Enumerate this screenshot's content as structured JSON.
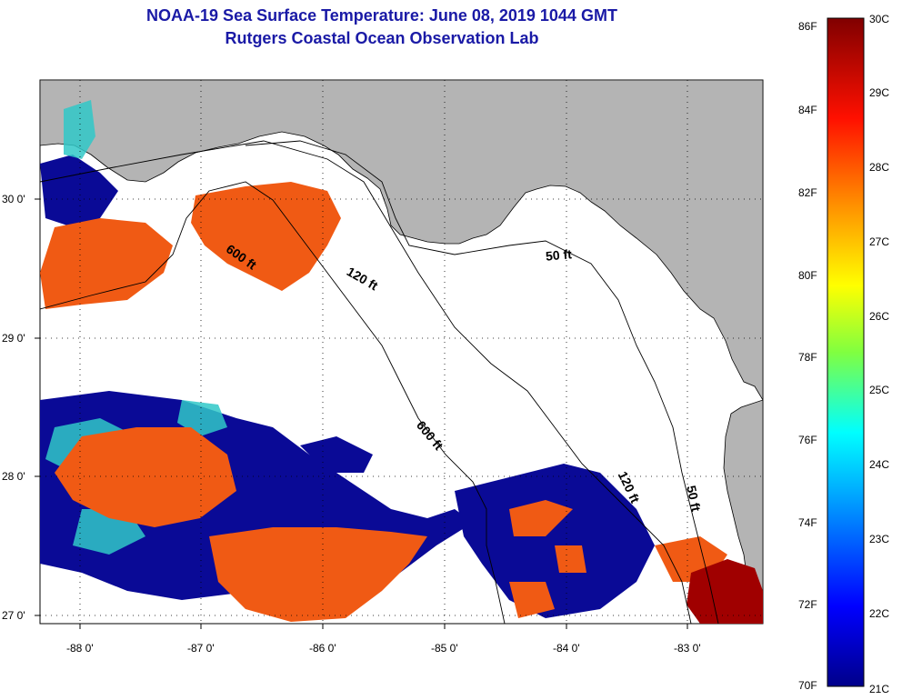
{
  "title_line1": "NOAA-19 Sea Surface Temperature:  June 08, 2019 1044 GMT",
  "title_line2": "Rutgers Coastal Ocean Observation Lab",
  "colors": {
    "land": "#b4b4b4",
    "water": "#ffffff",
    "title": "#1a1aa6",
    "warm": "#f05a14",
    "hot": "#a00000",
    "cold": "#0a0a96",
    "mid": "#30c8c8"
  },
  "axes": {
    "lon_labels": [
      "-88 0'",
      "-87 0'",
      "-86 0'",
      "-85 0'",
      "-84 0'",
      "-83 0'"
    ],
    "lat_labels": [
      "30 0'",
      "29 0'",
      "28 0'",
      "27 0'"
    ]
  },
  "contours": {
    "c600a": "600 ft",
    "c120a": "120 ft",
    "c50a": "50 ft",
    "c600b": "600 ft",
    "c120b": "120 ft",
    "c50b": "50 ft"
  },
  "colorbar": {
    "fahrenheit": [
      "86F",
      "84F",
      "82F",
      "80F",
      "78F",
      "76F",
      "74F",
      "72F",
      "70F"
    ],
    "celsius": [
      "30C",
      "29C",
      "28C",
      "27C",
      "26C",
      "25C",
      "24C",
      "23C",
      "22C",
      "21C"
    ]
  }
}
